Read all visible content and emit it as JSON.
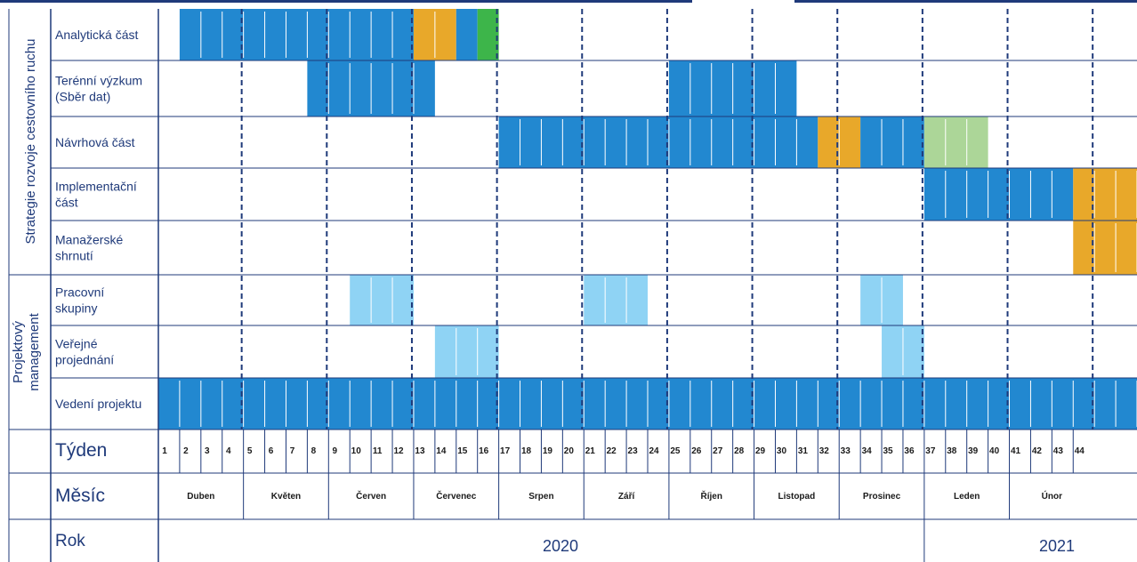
{
  "chart_data": {
    "type": "gantt",
    "groups": [
      {
        "label": "Strategie rozvoje cestovního ruchu",
        "rows": [
          0,
          1,
          2,
          3,
          4
        ]
      },
      {
        "label_lines": [
          "Projektový",
          "management"
        ],
        "rows": [
          5,
          6,
          7
        ]
      }
    ],
    "rows": [
      {
        "label_lines": [
          "Analytická část"
        ]
      },
      {
        "label_lines": [
          "Terénní výzkum",
          "(Sběr dat)"
        ]
      },
      {
        "label_lines": [
          "Návrhová část"
        ]
      },
      {
        "label_lines": [
          "Implementační",
          "část"
        ]
      },
      {
        "label_lines": [
          "Manažerské",
          "shrnutí"
        ]
      },
      {
        "label_lines": [
          "Pracovní",
          "skupiny"
        ]
      },
      {
        "label_lines": [
          "Veřejné",
          "projednání"
        ]
      },
      {
        "label_lines": [
          "Vedení projektu"
        ]
      }
    ],
    "colors": {
      "blue": "#2288d0",
      "orange": "#e8a82a",
      "green": "#3db54a",
      "light_green": "#acd698",
      "light_blue": "#8fd3f4",
      "navy": "#1f3a7a",
      "text": "#1f3a7a"
    },
    "bars": [
      {
        "row": 0,
        "start": 1,
        "end": 11,
        "color": "blue"
      },
      {
        "row": 0,
        "start": 12,
        "end": 13,
        "color": "orange"
      },
      {
        "row": 0,
        "start": 14,
        "end": 14,
        "color": "blue"
      },
      {
        "row": 0,
        "start": 15,
        "end": 15,
        "color": "green"
      },
      {
        "row": 1,
        "start": 7,
        "end": 12,
        "color": "blue"
      },
      {
        "row": 1,
        "start": 24,
        "end": 29,
        "color": "blue"
      },
      {
        "row": 2,
        "start": 16,
        "end": 30,
        "color": "blue"
      },
      {
        "row": 2,
        "start": 31,
        "end": 32,
        "color": "orange"
      },
      {
        "row": 2,
        "start": 33,
        "end": 35,
        "color": "blue"
      },
      {
        "row": 2,
        "start": 36,
        "end": 38,
        "color": "light_green"
      },
      {
        "row": 3,
        "start": 36,
        "end": 42,
        "color": "blue"
      },
      {
        "row": 3,
        "start": 43,
        "end": 46,
        "color": "orange"
      },
      {
        "row": 4,
        "start": 43,
        "end": 46,
        "color": "orange"
      },
      {
        "row": 5,
        "start": 9,
        "end": 11,
        "color": "light_blue"
      },
      {
        "row": 5,
        "start": 20,
        "end": 22,
        "color": "light_blue"
      },
      {
        "row": 5,
        "start": 33,
        "end": 34,
        "color": "light_blue"
      },
      {
        "row": 6,
        "start": 13,
        "end": 15,
        "color": "light_blue"
      },
      {
        "row": 6,
        "start": 34,
        "end": 35,
        "color": "light_blue"
      },
      {
        "row": 7,
        "start": 0,
        "end": 46,
        "color": "blue"
      }
    ],
    "header_labels": {
      "week": "Týden",
      "month": "Měsíc",
      "year": "Rok"
    },
    "weeks": [
      "1",
      "2",
      "3",
      "4",
      "5",
      "6",
      "7",
      "8",
      "9",
      "10",
      "11",
      "12",
      "13",
      "14",
      "15",
      "16",
      "17",
      "18",
      "19",
      "20",
      "21",
      "22",
      "23",
      "24",
      "25",
      "26",
      "27",
      "28",
      "29",
      "30",
      "31",
      "32",
      "33",
      "34",
      "35",
      "36",
      "37",
      "38",
      "39",
      "40",
      "41",
      "42",
      "43",
      "44"
    ],
    "months": [
      {
        "label": "Duben",
        "start": 0,
        "end": 4
      },
      {
        "label": "Květen",
        "start": 4,
        "end": 8
      },
      {
        "label": "Červen",
        "start": 8,
        "end": 12
      },
      {
        "label": "Červenec",
        "start": 12,
        "end": 16
      },
      {
        "label": "Srpen",
        "start": 16,
        "end": 20
      },
      {
        "label": "Září",
        "start": 20,
        "end": 24
      },
      {
        "label": "Říjen",
        "start": 24,
        "end": 28
      },
      {
        "label": "Listopad",
        "start": 28,
        "end": 32
      },
      {
        "label": "Prosinec",
        "start": 32,
        "end": 36
      },
      {
        "label": "Leden",
        "start": 36,
        "end": 40
      },
      {
        "label": "Únor",
        "start": 40,
        "end": 44
      }
    ],
    "years": [
      {
        "label": "2020",
        "start": 0,
        "end": 36
      },
      {
        "label": "2021",
        "start": 36,
        "end": 44
      }
    ]
  }
}
